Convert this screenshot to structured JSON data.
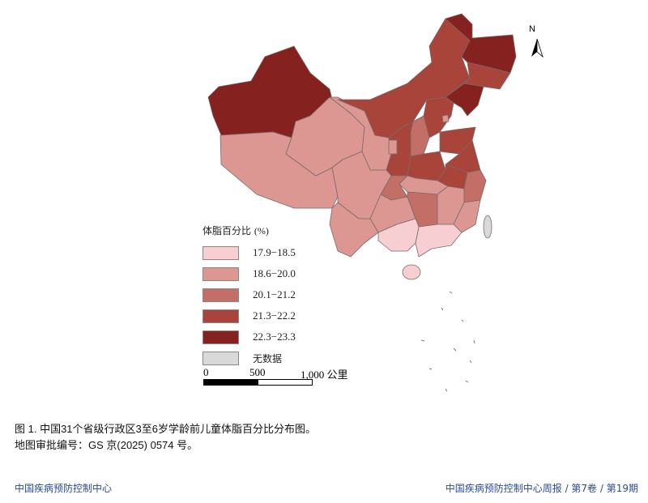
{
  "map": {
    "north_label": "N",
    "legend": {
      "title": "体脂百分比",
      "unit": "(%)",
      "items": [
        {
          "label": "17.9−18.5",
          "color": "#f7cfd2"
        },
        {
          "label": "18.6−20.0",
          "color": "#dc9793"
        },
        {
          "label": "20.1−21.2",
          "color": "#c46e68"
        },
        {
          "label": "21.3−22.2",
          "color": "#a8443a"
        },
        {
          "label": "22.3−23.3",
          "color": "#85211f"
        },
        {
          "label": "无数据",
          "color": "#d9d9d9"
        }
      ]
    },
    "scale": {
      "labels": [
        "0",
        "500",
        "1,000 公里"
      ]
    }
  },
  "caption": {
    "line1": "图 1. 中国31个省级行政区3至6岁学龄前儿童体脂百分比分布图。",
    "line2": "地图审批编号：GS 京(2025) 0574 号。"
  },
  "footer": {
    "left": "中国疾病预防控制中心",
    "right": "中国疾病预防控制中心周报 / 第7卷 / 第19期"
  }
}
